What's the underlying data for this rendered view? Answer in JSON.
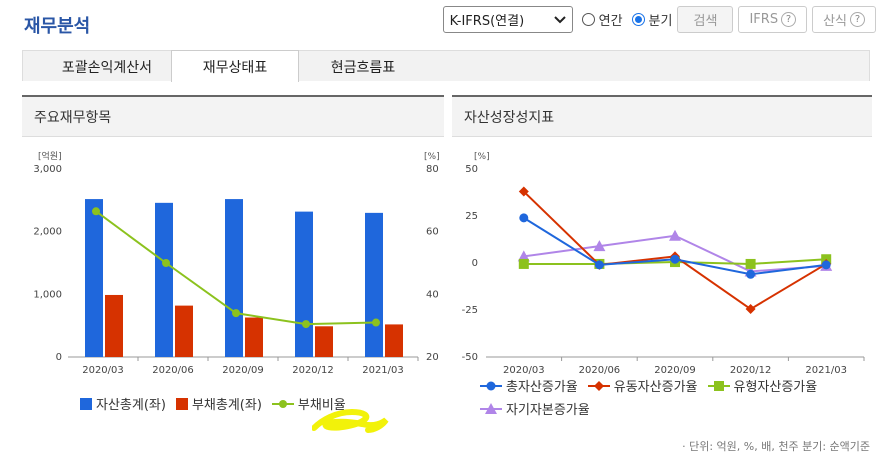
{
  "page": {
    "title": "재무분석"
  },
  "controls": {
    "standard_select": "K-IFRS(연결)",
    "radio_annual": "연간",
    "radio_quarter": "분기",
    "search_button": "검색",
    "ifrs_button": "IFRS",
    "formula_button": "산식",
    "help_glyph": "?"
  },
  "tabs": [
    {
      "label": "포괄손익계산서",
      "active": false
    },
    {
      "label": "재무상태표",
      "active": true
    },
    {
      "label": "현금흐름표",
      "active": false
    }
  ],
  "panel_left": {
    "title": "주요재무항목"
  },
  "panel_right": {
    "title": "자산성장성지표"
  },
  "footer": {
    "note": "· 단위: 억원, %, 배, 천주  분기: 순액기준"
  },
  "colors": {
    "asset": "#1f67dc",
    "liability": "#d63200",
    "ratio": "#8cc21e",
    "highlight": "#f2f20a"
  },
  "chart_data": [
    {
      "type": "bar",
      "categories": [
        "2020/03",
        "2020/06",
        "2020/09",
        "2020/12",
        "2021/03"
      ],
      "y_left_unit": "[억원]",
      "y_right_unit": "[%]",
      "y_left_ticks": [
        "3,000",
        "2,000",
        "1,000",
        "0"
      ],
      "y_right_ticks": [
        "80",
        "60",
        "40",
        "20"
      ],
      "ylim_left": [
        0,
        3000
      ],
      "ylim_right": [
        20,
        80
      ],
      "series": [
        {
          "name": "자산총계(좌)",
          "kind": "bar",
          "axis": "left",
          "color": "#1f67dc",
          "values": [
            2520,
            2460,
            2520,
            2320,
            2300
          ]
        },
        {
          "name": "부채총계(좌)",
          "kind": "bar",
          "axis": "left",
          "color": "#d63200",
          "values": [
            990,
            820,
            630,
            490,
            520
          ]
        },
        {
          "name": "부채비율",
          "kind": "line",
          "axis": "right",
          "color": "#8cc21e",
          "values": [
            66.5,
            50.0,
            34.0,
            30.5,
            31.0
          ]
        }
      ]
    },
    {
      "type": "line",
      "categories": [
        "2020/03",
        "2020/06",
        "2020/09",
        "2020/12",
        "2021/03"
      ],
      "y_unit": "[%]",
      "y_ticks": [
        "50",
        "25",
        "0",
        "-25",
        "-50"
      ],
      "ylim": [
        -50,
        50
      ],
      "series": [
        {
          "name": "총자산증가율",
          "marker": "circle",
          "color": "#1f67dc",
          "values": [
            24,
            -1,
            2,
            -6,
            -1
          ]
        },
        {
          "name": "유동자산증가율",
          "marker": "diamond",
          "color": "#d63200",
          "values": [
            38,
            -1,
            3.5,
            -24.5,
            -0.5
          ]
        },
        {
          "name": "유형자산증가율",
          "marker": "square",
          "color": "#8cc21e",
          "values": [
            -0.5,
            -0.5,
            0.5,
            -0.5,
            2
          ]
        },
        {
          "name": "자기자본증가율",
          "marker": "triangle",
          "color": "#b085e8",
          "values": [
            3.5,
            9,
            14.5,
            -4.5,
            -1.5
          ]
        }
      ]
    }
  ]
}
